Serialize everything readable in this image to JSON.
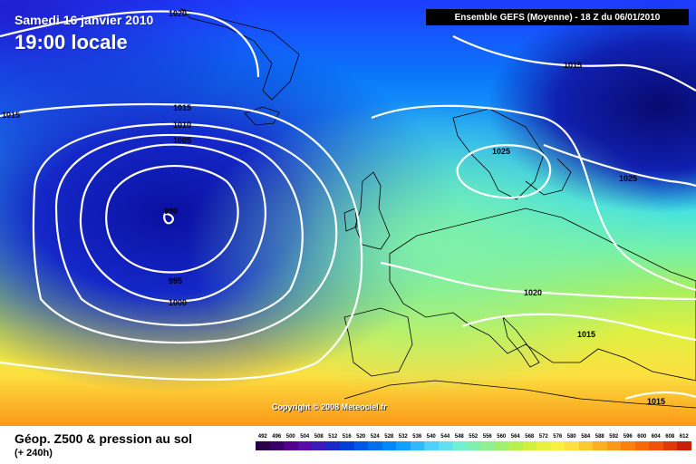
{
  "header": {
    "date": "Samedi 16 janvier 2010",
    "time": "19:00 locale",
    "run_info": "Ensemble GEFS (Moyenne) - 18 Z du 06/01/2010"
  },
  "map": {
    "copyright": "Copyright © 2008 Meteociel.fr",
    "pressure_labels": [
      "1020",
      "1015",
      "1015",
      "1010",
      "1005",
      "990",
      "995",
      "1000",
      "1025",
      "1025",
      "1015",
      "1020",
      "1015",
      "1015"
    ]
  },
  "footer": {
    "title": "Géop. Z500 & pression au sol",
    "subtitle": "(+ 240h)"
  },
  "legend": {
    "ticks": [
      "492",
      "496",
      "500",
      "504",
      "508",
      "512",
      "516",
      "520",
      "524",
      "528",
      "532",
      "536",
      "540",
      "544",
      "548",
      "552",
      "556",
      "560",
      "564",
      "568",
      "572",
      "576",
      "580",
      "584",
      "588",
      "592",
      "596",
      "600",
      "604",
      "608",
      "612"
    ],
    "colors": [
      "#2a004a",
      "#3a006a",
      "#50008a",
      "#5a0aa6",
      "#3a1ab8",
      "#1a2ac8",
      "#0040d8",
      "#0058e8",
      "#0070f0",
      "#0088f8",
      "#10a0ff",
      "#30b8ff",
      "#50d0ff",
      "#60e0f0",
      "#70f0d0",
      "#80f0b0",
      "#90f090",
      "#a0f070",
      "#b8f050",
      "#d0f040",
      "#e8f040",
      "#f8f040",
      "#fce040",
      "#fcc830",
      "#fcb020",
      "#fc9818",
      "#fc8010",
      "#f86808",
      "#f05008",
      "#e03808",
      "#c82008"
    ]
  }
}
